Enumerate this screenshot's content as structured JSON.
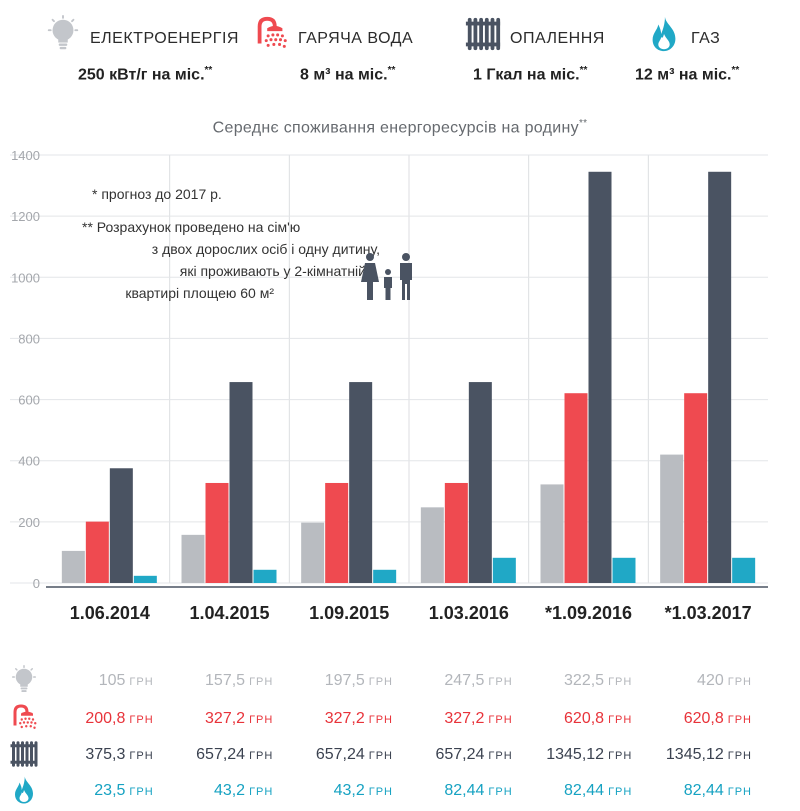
{
  "legend": [
    {
      "name": "ЕЛЕКТРОЕНЕРГІЯ",
      "value": "250 кВт/г на міс.",
      "mark": "**",
      "icon": "lightbulb-icon",
      "color": "#b9bcc1"
    },
    {
      "name": "ГАРЯЧА ВОДА",
      "value": "8 м³ на міс.",
      "mark": "**",
      "icon": "shower-icon",
      "color": "#ef4a50"
    },
    {
      "name": "ОПАЛЕННЯ",
      "value": "1 Гкал на міс.",
      "mark": "**",
      "icon": "radiator-icon",
      "color": "#4a5362"
    },
    {
      "name": "ГАЗ",
      "value": "12 м³ на міс.",
      "mark": "**",
      "icon": "gas-flame-icon",
      "color": "#20a8c6"
    }
  ],
  "notes": {
    "forecast": "* прогноз до 2017 р.",
    "calc_line1": "** Розрахунок проведено на сім'ю",
    "calc_line2": "з двох дорослих осіб і одну дитину,",
    "calc_line3": "які проживають у 2-кімнатній",
    "calc_line4": "квартирі площею 60 м²",
    "family_icon": "family-icon"
  },
  "chart_data": {
    "type": "bar",
    "title": "Середнє споживання енергоресурсів на родину",
    "title_mark": "**",
    "categories": [
      "1.06.2014",
      "1.04.2015",
      "1.09.2015",
      "1.03.2016",
      "*1.09.2016",
      "*1.03.2017"
    ],
    "ylim": [
      0,
      1400
    ],
    "yticks": [
      0,
      200,
      400,
      600,
      800,
      1000,
      1200,
      1400
    ],
    "grid": true,
    "series": [
      {
        "name": "ЕЛЕКТРОЕНЕРГІЯ",
        "color": "#b9bcc1",
        "values": [
          105,
          157.5,
          197.5,
          247.5,
          322.5,
          420
        ]
      },
      {
        "name": "ГАРЯЧА ВОДА",
        "color": "#ef4a50",
        "values": [
          200.8,
          327.2,
          327.2,
          327.2,
          620.8,
          620.8
        ]
      },
      {
        "name": "ОПАЛЕННЯ",
        "color": "#4a5362",
        "values": [
          375.3,
          657.24,
          657.24,
          657.24,
          1345.12,
          1345.12
        ]
      },
      {
        "name": "ГАЗ",
        "color": "#20a8c6",
        "values": [
          23.5,
          43.2,
          43.2,
          82.44,
          82.44,
          82.44
        ]
      }
    ]
  },
  "table": {
    "unit": "ГРН",
    "rows": [
      {
        "icon": "lightbulb-icon",
        "color": "#b3b6bb",
        "values": [
          "105",
          "157,5",
          "197,5",
          "247,5",
          "322,5",
          "420"
        ]
      },
      {
        "icon": "shower-icon",
        "color": "#e8333a",
        "values": [
          "200,8",
          "327,2",
          "327,2",
          "327,2",
          "620,8",
          "620,8"
        ]
      },
      {
        "icon": "radiator-icon",
        "color": "#3b4250",
        "values": [
          "375,3",
          "657,24",
          "657,24",
          "657,24",
          "1345,12",
          "1345,12"
        ]
      },
      {
        "icon": "gas-flame-icon",
        "color": "#16a2c2",
        "values": [
          "23,5",
          "43,2",
          "43,2",
          "82,44",
          "82,44",
          "82,44"
        ]
      }
    ]
  }
}
